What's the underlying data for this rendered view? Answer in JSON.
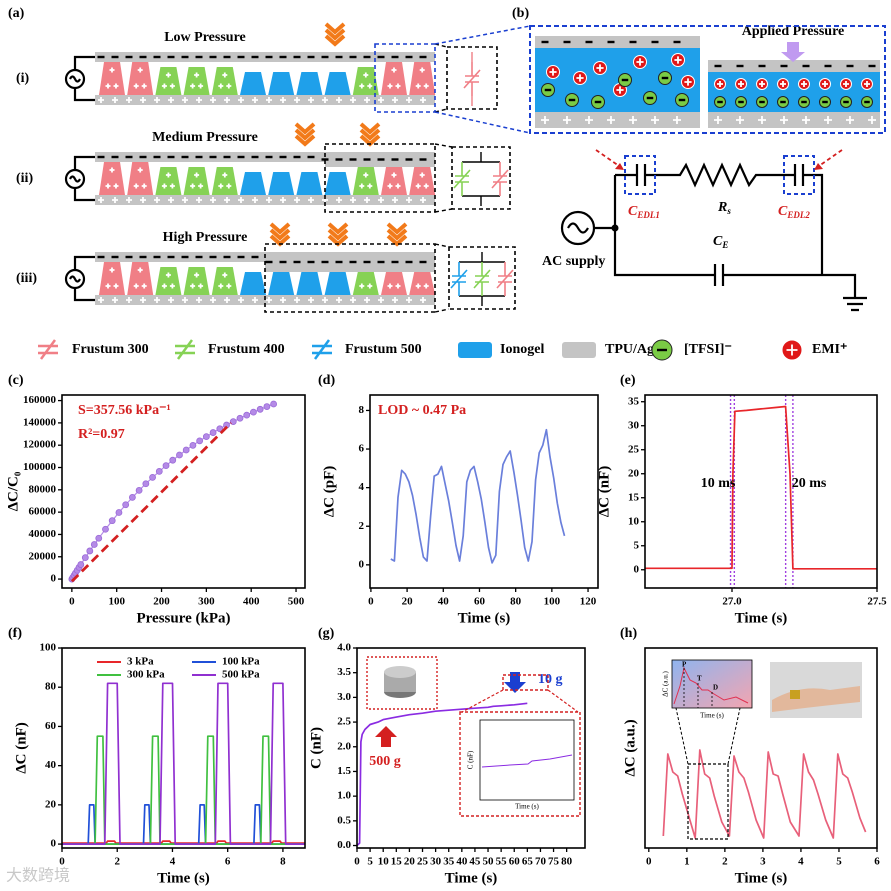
{
  "diagram": {
    "panel_labels": [
      "(a)",
      "(b)"
    ],
    "rows": [
      {
        "label": "(i)",
        "title": "Low Pressure"
      },
      {
        "label": "(ii)",
        "title": "Medium Pressure"
      },
      {
        "label": "(iii)",
        "title": "High Pressure"
      }
    ],
    "applied_pressure": "Applied Pressure",
    "circuit": {
      "c_edl1": {
        "symbol": "C",
        "subscript": "EDL1"
      },
      "rs": {
        "symbol": "R",
        "subscript": "s"
      },
      "c_edl2": {
        "symbol": "C",
        "subscript": "EDL2"
      },
      "ce": {
        "symbol": "C",
        "subscript": "E"
      },
      "ac_supply": "AC supply"
    },
    "legend": [
      "Frustum 300",
      "Frustum 400",
      "Frustum 500",
      "Ionogel",
      "TPU/Ag",
      "[TFSI]⁻",
      "EMI⁺"
    ]
  },
  "watermark": "大数跨境",
  "chart_data": [
    {
      "type": "scatter",
      "label": "(c)",
      "xlabel": "Pressure (kPa)",
      "ylabel": "ΔC/C₀",
      "xlim": [
        -22,
        520
      ],
      "ylim": [
        -8000,
        165000
      ],
      "xticks": [
        0,
        100,
        200,
        300,
        400,
        500
      ],
      "yticks": [
        0,
        20000,
        40000,
        60000,
        80000,
        100000,
        120000,
        140000,
        160000
      ],
      "series": [
        {
          "color": "#b48ae6",
          "x": [
            0,
            2,
            5,
            8,
            12,
            16,
            20,
            30,
            40,
            50,
            60,
            75,
            90,
            105,
            120,
            135,
            150,
            165,
            180,
            195,
            210,
            225,
            240,
            255,
            270,
            285,
            300,
            315,
            330,
            345,
            360,
            375,
            390,
            405,
            420,
            435,
            450
          ],
          "values": [
            0,
            1340,
            3340,
            5310,
            7920,
            10490,
            13030,
            19230,
            25210,
            31000,
            36620,
            44680,
            52360,
            59650,
            66600,
            73210,
            79490,
            85470,
            91140,
            96560,
            101690,
            106580,
            111240,
            115670,
            119870,
            123890,
            127690,
            131320,
            134750,
            138050,
            141160,
            144130,
            146960,
            149640,
            152190,
            154610,
            156930
          ]
        }
      ],
      "fit": {
        "color": "#d42020",
        "line_style": "dashed",
        "x": [
          0,
          355
        ],
        "values": [
          -2000,
          140000
        ]
      },
      "annotations": [
        {
          "text": "S=357.56 kPa⁻¹",
          "color": "#d42020"
        },
        {
          "text": "R²=0.97",
          "color": "#d42020"
        }
      ]
    },
    {
      "type": "line",
      "label": "(d)",
      "xlabel": "Time (s)",
      "ylabel": "ΔC (pF)",
      "xlim": [
        -0.5,
        125.5
      ],
      "ylim": [
        -1.2,
        8.8
      ],
      "xticks": [
        0,
        20,
        40,
        60,
        80,
        100,
        120
      ],
      "yticks": [
        0,
        2,
        4,
        6,
        8
      ],
      "series": [
        {
          "color": "#6a7fdb",
          "x": [
            11,
            13,
            15,
            17,
            19,
            21,
            23,
            25,
            27,
            29,
            31,
            33,
            35,
            37,
            39,
            41,
            43,
            45,
            47,
            49,
            51,
            53,
            55,
            57,
            59,
            61,
            63,
            65,
            67,
            69,
            71,
            73,
            75,
            77,
            79,
            81,
            83,
            85,
            87,
            89,
            91,
            93,
            95,
            97,
            99,
            101,
            103,
            105,
            107
          ],
          "values": [
            0.3,
            0.2,
            3.5,
            4.9,
            4.7,
            4.3,
            3.6,
            2.6,
            1.4,
            0.4,
            0.2,
            2.5,
            4.6,
            4.7,
            5.1,
            4.2,
            3.3,
            2.2,
            1.0,
            0.2,
            1.5,
            4.3,
            4.9,
            5.1,
            4.3,
            3.4,
            2.2,
            0.9,
            0.1,
            0.5,
            3.8,
            5.2,
            5.6,
            5.9,
            4.8,
            3.6,
            2.3,
            0.9,
            0.2,
            1.2,
            4.4,
            5.8,
            6.2,
            7.0,
            5.6,
            4.5,
            3.2,
            2.2,
            1.5
          ]
        }
      ],
      "annotations": [
        {
          "text": "LOD ~ 0.47 Pa",
          "color": "#d42020"
        }
      ]
    },
    {
      "type": "line",
      "label": "(e)",
      "xlabel": "Time (s)",
      "ylabel": "ΔC (nF)",
      "xlim": [
        26.7,
        27.5
      ],
      "ylim": [
        -3.8,
        36.4
      ],
      "xticks": [
        {
          "value": 27,
          "label": "27.0"
        },
        27.5
      ],
      "yticks": [
        0,
        5,
        10,
        15,
        20,
        25,
        30,
        35
      ],
      "series": [
        {
          "color": "#e8262a",
          "x": [
            26.7,
            27.0,
            27.003,
            27.01,
            27.05,
            27.1,
            27.15,
            27.185,
            27.2,
            27.21,
            27.5
          ],
          "values": [
            0.3,
            0.3,
            20,
            33,
            33.2,
            33.5,
            33.8,
            34,
            20,
            0.2,
            0.2
          ]
        }
      ],
      "vlines": {
        "color": "#a040e0",
        "x": [
          26.995,
          27.008,
          27.185,
          27.21
        ]
      },
      "annotations": [
        {
          "text": "10 ms",
          "color": "#000000"
        },
        {
          "text": "20 ms",
          "color": "#000000"
        }
      ]
    },
    {
      "type": "line",
      "label": "(f)",
      "xlabel": "Time (s)",
      "ylabel": "ΔC (nF)",
      "xlim": [
        0,
        8.8
      ],
      "ylim": [
        -2,
        100
      ],
      "xticks": [
        0,
        2,
        4,
        6,
        8
      ],
      "yticks": [
        0,
        20,
        40,
        60,
        80,
        100
      ],
      "series": [
        {
          "name": "3 kPa",
          "color": "#e8262a",
          "x": [
            0,
            1.6,
            1.65,
            1.9,
            1.95,
            3.6,
            3.65,
            3.9,
            3.95,
            5.6,
            5.65,
            5.9,
            5.95,
            7.6,
            7.65,
            7.9,
            7.95,
            8.8
          ],
          "values": [
            0.5,
            0.5,
            1.5,
            1.5,
            0.5,
            0.5,
            1.5,
            1.5,
            0.5,
            0.5,
            1.5,
            1.5,
            0.5,
            0.5,
            1.5,
            1.5,
            0.5,
            0.5
          ]
        },
        {
          "name": "100 kPa",
          "color": "#2050d8",
          "x": [
            0,
            0.95,
            1.0,
            1.15,
            1.2,
            2.95,
            3.0,
            3.15,
            3.2,
            4.95,
            5.0,
            5.15,
            5.2,
            6.95,
            7.0,
            7.15,
            7.2,
            8.8
          ],
          "values": [
            0,
            0,
            20,
            20,
            0,
            0,
            20,
            20,
            0,
            0,
            20,
            20,
            0,
            0,
            20,
            20,
            0,
            0
          ]
        },
        {
          "name": "300 kPa",
          "color": "#40c040",
          "x": [
            0,
            1.2,
            1.28,
            1.48,
            1.55,
            3.2,
            3.28,
            3.48,
            3.55,
            5.2,
            5.28,
            5.48,
            5.55,
            7.2,
            7.28,
            7.48,
            7.55,
            8.8
          ],
          "values": [
            0,
            0,
            55,
            55,
            0,
            0,
            55,
            55,
            0,
            0,
            55,
            55,
            0,
            0,
            55,
            55,
            0,
            0
          ]
        },
        {
          "name": "500 kPa",
          "color": "#9030d0",
          "x": [
            0,
            1.55,
            1.65,
            2.0,
            2.1,
            3.55,
            3.65,
            4.0,
            4.1,
            5.55,
            5.65,
            6.0,
            6.1,
            7.55,
            7.65,
            8.0,
            8.1,
            8.8
          ],
          "values": [
            0,
            0,
            82,
            82,
            0,
            0,
            82,
            82,
            0,
            0,
            82,
            82,
            0,
            0,
            82,
            82,
            0,
            0
          ]
        }
      ]
    },
    {
      "type": "line",
      "label": "(g)",
      "xlabel": "Time (s)",
      "ylabel": "C (nF)",
      "xlim": [
        0,
        87
      ],
      "ylim": [
        -0.05,
        4.0
      ],
      "xticks": [
        0,
        5,
        10,
        15,
        20,
        25,
        30,
        35,
        40,
        45,
        50,
        55,
        60,
        65,
        70,
        75,
        80
      ],
      "yticks": [
        {
          "value": 0,
          "label": "0.0"
        },
        {
          "value": 0.5,
          "label": "0.5"
        },
        {
          "value": 1,
          "label": "1.0"
        },
        {
          "value": 1.5,
          "label": "1.5"
        },
        {
          "value": 2,
          "label": "2.0"
        },
        {
          "value": 2.5,
          "label": "2.5"
        },
        {
          "value": 3,
          "label": "3.0"
        },
        {
          "value": 3.5,
          "label": "3.5"
        },
        {
          "value": 4,
          "label": "4.0"
        }
      ],
      "series": [
        {
          "color": "#8a2be2",
          "x": [
            0,
            1,
            1.5,
            2,
            3,
            5,
            8,
            10,
            15,
            20,
            25,
            30,
            35,
            40,
            45,
            50,
            52,
            55,
            60,
            65
          ],
          "values": [
            0,
            0.05,
            2.1,
            2.25,
            2.35,
            2.45,
            2.5,
            2.55,
            2.6,
            2.65,
            2.68,
            2.72,
            2.74,
            2.76,
            2.78,
            2.8,
            2.82,
            2.83,
            2.85,
            2.88
          ]
        }
      ],
      "annotations": [
        {
          "text": "10 g",
          "color": "#1a3fd0"
        },
        {
          "text": "500 g",
          "color": "#d42020"
        }
      ],
      "inset": {
        "xlabel": "Time (s)",
        "ylabel": "C (nF)"
      }
    },
    {
      "type": "line",
      "label": "(h)",
      "xlabel": "Time (s)",
      "ylabel": "ΔC (a.u.)",
      "xlim": [
        -0.1,
        6
      ],
      "ylim": [
        0,
        1
      ],
      "xticks": [
        0,
        1,
        2,
        3,
        4,
        5,
        6
      ],
      "series": [
        {
          "color": "#e8607a",
          "x": [
            0.38,
            0.5,
            0.63,
            0.76,
            0.88,
            1.08,
            1.22,
            1.34,
            1.47,
            1.6,
            1.72,
            1.92,
            2.12,
            2.24,
            2.37,
            2.5,
            2.62,
            2.82,
            3.02,
            3.14,
            3.27,
            3.4,
            3.52,
            3.72,
            3.95,
            4.07,
            4.2,
            4.33,
            4.45,
            4.65,
            4.85,
            4.97,
            5.1,
            5.23,
            5.35,
            5.55,
            5.7
          ],
          "values": [
            0.06,
            0.47,
            0.38,
            0.36,
            0.27,
            0.14,
            0.05,
            0.49,
            0.37,
            0.35,
            0.26,
            0.13,
            0.06,
            0.46,
            0.38,
            0.35,
            0.28,
            0.14,
            0.05,
            0.48,
            0.37,
            0.36,
            0.27,
            0.13,
            0.06,
            0.47,
            0.38,
            0.34,
            0.27,
            0.14,
            0.05,
            0.47,
            0.37,
            0.35,
            0.28,
            0.15,
            0.08
          ]
        }
      ],
      "inset": {
        "xlabel": "Time (s)",
        "ylabel": "ΔC (a.u.)",
        "points": [
          "P",
          "T",
          "D"
        ]
      }
    }
  ]
}
